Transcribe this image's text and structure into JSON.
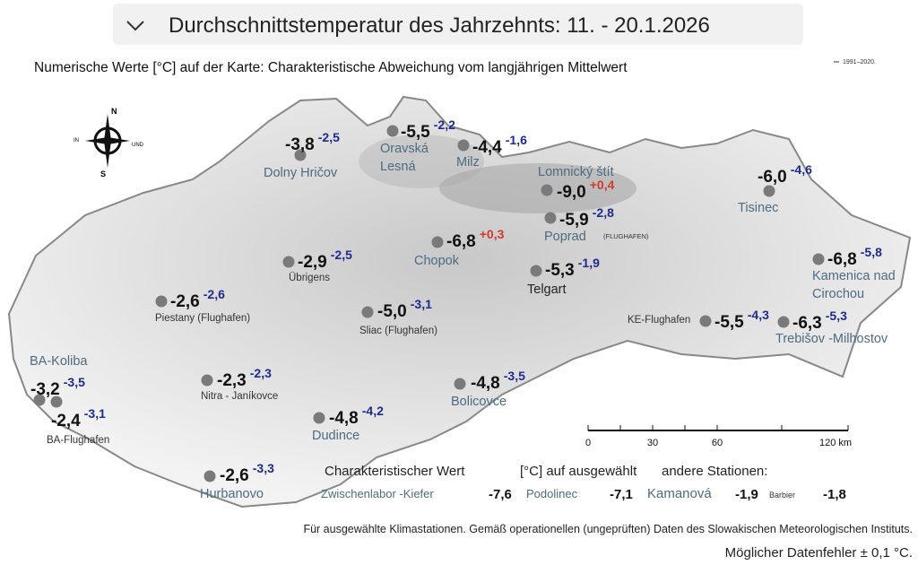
{
  "header": {
    "title": "Durchschnittstemperatur des Jahrzehnts: 11. - 20.1.2026",
    "subtitle": "Numerische Werte [°C] auf der Karte: Charakteristische Abweichung vom langjährigen Mittelwert",
    "reference_period": "1991–2020."
  },
  "compass": {
    "north": "N",
    "south": "S",
    "west": "IN",
    "east": "UND"
  },
  "stations": [
    {
      "name": [
        "Dolny Hričov"
      ],
      "value": "-3,8",
      "deviation": "-2,5"
    },
    {
      "name": [
        "Oravská",
        "Lesná"
      ],
      "value": "-5,5",
      "deviation": "-2,2"
    },
    {
      "name": [
        "Milz"
      ],
      "value": "-4,4",
      "deviation": "-1,6"
    },
    {
      "name": [
        "Lomnický   štít"
      ],
      "value": "-9,0",
      "deviation": "+0,4"
    },
    {
      "name": [
        "Poprad"
      ],
      "note": "(FLUGHAFEN)",
      "value": "-5,9",
      "deviation": "-2,8"
    },
    {
      "name": [
        "Chopok"
      ],
      "value": "-6,8",
      "deviation": "+0,3"
    },
    {
      "name": [
        "Telgart"
      ],
      "value": "-5,3",
      "deviation": "-1,9"
    },
    {
      "name": [
        "Übrigens"
      ],
      "value": "-2,9",
      "deviation": "-2,5"
    },
    {
      "name": [
        "Piestany (Flughafen)"
      ],
      "value": "-2,6",
      "deviation": "-2,6"
    },
    {
      "name": [
        "Sliac (Flughafen)"
      ],
      "value": "-5,0",
      "deviation": "-3,1"
    },
    {
      "name": [
        "Tisinec"
      ],
      "value": "-6,0",
      "deviation": "-4,6"
    },
    {
      "name": [
        "Kamenica   nad",
        "Cirochou"
      ],
      "value": "-6,8",
      "deviation": "-5,8"
    },
    {
      "name": [
        "KE-Flughafen"
      ],
      "value": "-5,5",
      "deviation": "-4,3"
    },
    {
      "name": [
        "Trebišov  -Milhostov"
      ],
      "value": "-6,3",
      "deviation": "-5,3"
    },
    {
      "name": [
        "BA-Koliba"
      ],
      "value": "-3,2",
      "deviation": "-3,5"
    },
    {
      "name": [
        "BA-Flughafen"
      ],
      "value": "-2,4",
      "deviation": "-3,1"
    },
    {
      "name": [
        "Nitra - Janíkovce"
      ],
      "value": "-2,3",
      "deviation": "-2,3"
    },
    {
      "name": [
        "Bolicovce"
      ],
      "value": "-4,8",
      "deviation": "-3,5"
    },
    {
      "name": [
        "Dudince"
      ],
      "value": "-4,8",
      "deviation": "-4,2"
    },
    {
      "name": [
        "Hurbanovo"
      ],
      "value": "-2,6",
      "deviation": "-3,3"
    }
  ],
  "scale": {
    "ticks": [
      "0",
      "30",
      "60",
      "120 km"
    ]
  },
  "legend": {
    "title": "Charakteristischer Wert",
    "unit": "[°C] auf ausgewählt",
    "others": "andere Stationen:",
    "items": [
      {
        "name": "Zwischenlabor   -Kiefer",
        "value": "-7,6"
      },
      {
        "name": "Podolinec",
        "value": "-7,1"
      },
      {
        "name": "Kamanová",
        "value": "-1,9"
      },
      {
        "name": "Barbier",
        "value": "-1,8"
      }
    ]
  },
  "footer": {
    "source": "Für ausgewählte Klimastationen. Gemäß operationellen (ungeprüften) Daten des Slowakischen Meteorologischen Instituts.",
    "error": "Möglicher Datenfehler ± 0,1 °C."
  }
}
